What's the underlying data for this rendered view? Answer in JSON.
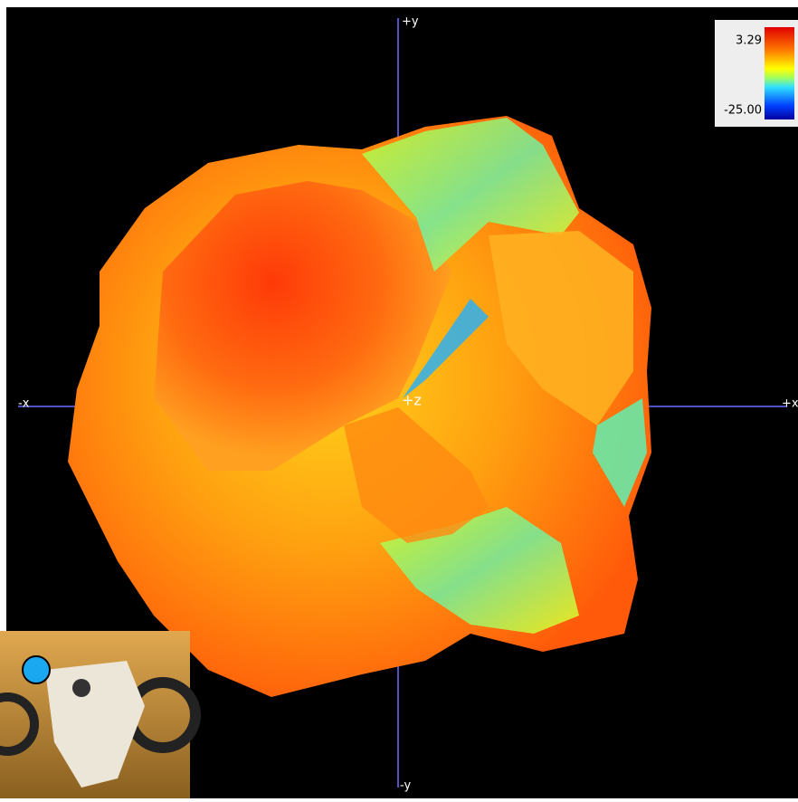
{
  "axes": {
    "plus_y": "+y",
    "minus_y": "-y",
    "plus_x": "+x",
    "minus_x": "-x",
    "origin": "+z"
  },
  "color_scale": {
    "max": "3.29",
    "min": "-25.00"
  }
}
